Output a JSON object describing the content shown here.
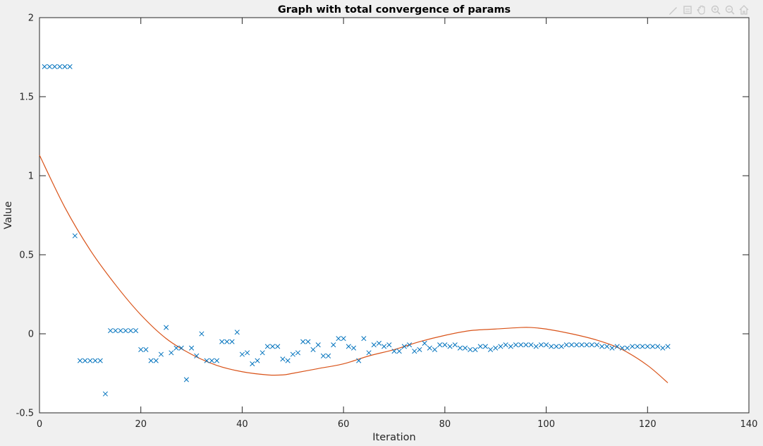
{
  "chart_data": {
    "type": "scatter",
    "title": "Graph with total convergence of params",
    "xlabel": "Iteration",
    "ylabel": "Value",
    "xlim": [
      0,
      140
    ],
    "ylim": [
      -0.5,
      2
    ],
    "xticks": [
      "0",
      "20",
      "40",
      "60",
      "80",
      "100",
      "120",
      "140"
    ],
    "yticks": [
      "-0.5",
      "0",
      "0.5",
      "1",
      "1.5",
      "2"
    ],
    "grid": false,
    "legend": "none",
    "series": [
      {
        "marker": "x",
        "color": "#0072BD",
        "x": [
          1,
          2,
          3,
          4,
          5,
          6,
          7,
          8,
          9,
          10,
          11,
          12,
          13,
          14,
          15,
          16,
          17,
          18,
          19,
          20,
          21,
          22,
          23,
          24,
          25,
          26,
          27,
          28,
          29,
          30,
          31,
          32,
          33,
          34,
          35,
          36,
          37,
          38,
          39,
          40,
          41,
          42,
          43,
          44,
          45,
          46,
          47,
          48,
          49,
          50,
          51,
          52,
          53,
          54,
          55,
          56,
          57,
          58,
          59,
          60,
          61,
          62,
          63,
          64,
          65,
          66,
          67,
          68,
          69,
          70,
          71,
          72,
          73,
          74,
          75,
          76,
          77,
          78,
          79,
          80,
          81,
          82,
          83,
          84,
          85,
          86,
          87,
          88,
          89,
          90,
          91,
          92,
          93,
          94,
          95,
          96,
          97,
          98,
          99,
          100,
          101,
          102,
          103,
          104,
          105,
          106,
          107,
          108,
          109,
          110,
          111,
          112,
          113,
          114,
          115,
          116,
          117,
          118,
          119,
          120,
          121,
          122,
          123,
          124
        ],
        "y": [
          1.69,
          1.69,
          1.69,
          1.69,
          1.69,
          1.69,
          0.62,
          -0.17,
          -0.17,
          -0.17,
          -0.17,
          -0.17,
          -0.38,
          0.02,
          0.02,
          0.02,
          0.02,
          0.02,
          0.02,
          -0.1,
          -0.1,
          -0.17,
          -0.17,
          -0.13,
          0.04,
          -0.12,
          -0.09,
          -0.09,
          -0.29,
          -0.09,
          -0.14,
          0.0,
          -0.17,
          -0.17,
          -0.17,
          -0.05,
          -0.05,
          -0.05,
          0.01,
          -0.13,
          -0.12,
          -0.19,
          -0.17,
          -0.12,
          -0.08,
          -0.08,
          -0.08,
          -0.16,
          -0.17,
          -0.13,
          -0.12,
          -0.05,
          -0.05,
          -0.1,
          -0.07,
          -0.14,
          -0.14,
          -0.07,
          -0.03,
          -0.03,
          -0.08,
          -0.09,
          -0.17,
          -0.03,
          -0.12,
          -0.07,
          -0.06,
          -0.08,
          -0.07,
          -0.11,
          -0.11,
          -0.08,
          -0.07,
          -0.11,
          -0.1,
          -0.06,
          -0.09,
          -0.1,
          -0.07,
          -0.07,
          -0.08,
          -0.07,
          -0.09,
          -0.09,
          -0.1,
          -0.1,
          -0.08,
          -0.08,
          -0.1,
          -0.09,
          -0.08,
          -0.07,
          -0.08,
          -0.07,
          -0.07,
          -0.07,
          -0.07,
          -0.08,
          -0.07,
          -0.07,
          -0.08,
          -0.08,
          -0.08,
          -0.07,
          -0.07,
          -0.07,
          -0.07,
          -0.07,
          -0.07,
          -0.07,
          -0.08,
          -0.08,
          -0.09,
          -0.08,
          -0.09,
          -0.09,
          -0.08,
          -0.08,
          -0.08,
          -0.08,
          -0.08,
          -0.08,
          -0.09,
          -0.08
        ]
      },
      {
        "type": "line",
        "color": "#D95319",
        "x": [
          0,
          5,
          10,
          15,
          20,
          25,
          30,
          35,
          40,
          45,
          48,
          50,
          55,
          60,
          65,
          70,
          75,
          80,
          85,
          90,
          95,
          97,
          100,
          105,
          110,
          115,
          120,
          124
        ],
        "y": [
          1.13,
          0.8,
          0.53,
          0.31,
          0.12,
          -0.03,
          -0.13,
          -0.2,
          -0.24,
          -0.26,
          -0.26,
          -0.25,
          -0.22,
          -0.19,
          -0.14,
          -0.1,
          -0.05,
          -0.01,
          0.02,
          0.03,
          0.04,
          0.04,
          0.03,
          0.0,
          -0.04,
          -0.1,
          -0.2,
          -0.31
        ]
      }
    ]
  },
  "toolbar": {
    "icons": [
      "brush-icon",
      "data-tips-icon",
      "pan-icon",
      "zoom-in-icon",
      "zoom-out-icon",
      "home-icon"
    ]
  }
}
